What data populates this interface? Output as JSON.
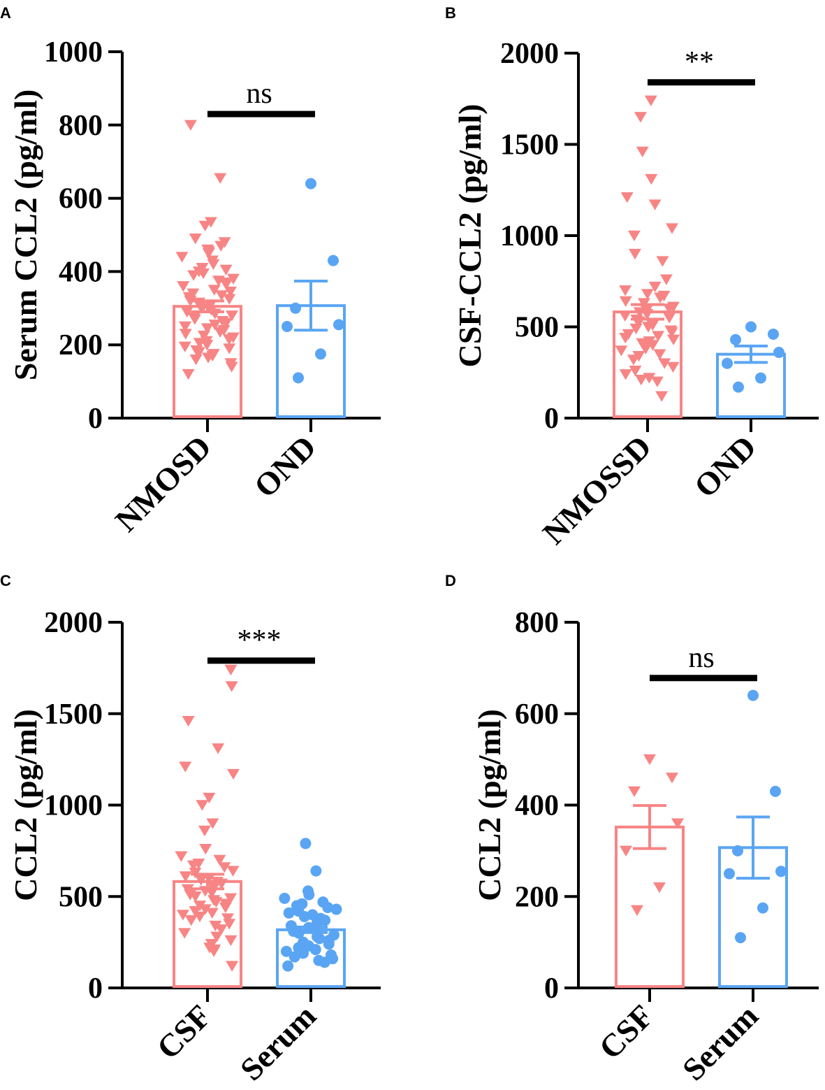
{
  "colors": {
    "group1": "#f78585",
    "group2": "#5aa5f3",
    "axis": "#000000"
  },
  "chart_data": [
    {
      "panel": "A",
      "type": "bar",
      "ylabel": "Serum CCL2 (pg/ml)",
      "ylim": [
        0,
        1000
      ],
      "yticks": [
        0,
        200,
        400,
        600,
        800,
        1000
      ],
      "categories": [
        "NMOSD",
        "OND"
      ],
      "series": [
        {
          "name": "NMOSD",
          "mean": 305,
          "sem": 15,
          "marker": "triangle-down",
          "points": [
            800,
            655,
            535,
            525,
            490,
            480,
            470,
            460,
            455,
            450,
            440,
            430,
            420,
            410,
            405,
            400,
            395,
            390,
            380,
            375,
            370,
            365,
            360,
            350,
            345,
            340,
            335,
            330,
            325,
            320,
            315,
            310,
            305,
            300,
            295,
            290,
            285,
            280,
            275,
            270,
            265,
            260,
            255,
            250,
            245,
            240,
            235,
            230,
            225,
            220,
            215,
            210,
            205,
            200,
            195,
            190,
            185,
            180,
            175,
            170,
            165,
            160,
            150,
            140,
            120
          ]
        },
        {
          "name": "OND",
          "mean": 307,
          "sem": 67,
          "marker": "circle",
          "points": [
            640,
            430,
            300,
            255,
            250,
            175,
            110
          ]
        }
      ],
      "significance": {
        "label": "ns",
        "pair": [
          0,
          1
        ],
        "y": 830
      }
    },
    {
      "panel": "B",
      "type": "bar",
      "ylabel": "CSF-CCL2 (pg/ml)",
      "ylim": [
        0,
        2000
      ],
      "yticks": [
        0,
        500,
        1000,
        1500,
        2000
      ],
      "categories": [
        "NMOSSD",
        "OND"
      ],
      "series": [
        {
          "name": "NMOSSD",
          "mean": 582,
          "sem": 40,
          "marker": "triangle-down",
          "points": [
            1740,
            1650,
            1460,
            1310,
            1210,
            1170,
            1040,
            1000,
            900,
            860,
            760,
            720,
            700,
            680,
            670,
            660,
            640,
            630,
            610,
            600,
            590,
            580,
            570,
            560,
            550,
            540,
            530,
            520,
            510,
            500,
            490,
            480,
            470,
            460,
            450,
            440,
            430,
            420,
            410,
            400,
            390,
            380,
            370,
            350,
            340,
            320,
            300,
            280,
            260,
            240,
            220,
            210,
            200,
            120
          ]
        },
        {
          "name": "OND",
          "mean": 350,
          "sem": 45,
          "marker": "circle",
          "points": [
            500,
            460,
            430,
            360,
            300,
            220,
            170
          ]
        }
      ],
      "significance": {
        "label": "**",
        "pair": [
          0,
          1
        ],
        "y": 1840
      }
    },
    {
      "panel": "C",
      "type": "bar",
      "ylabel": "CCL2 (pg/ml)",
      "ylim": [
        0,
        2000
      ],
      "yticks": [
        0,
        500,
        1000,
        1500,
        2000
      ],
      "categories": [
        "CSF",
        "Serum"
      ],
      "series": [
        {
          "name": "CSF",
          "mean": 582,
          "sem": 40,
          "marker": "triangle-down",
          "points": [
            1740,
            1650,
            1460,
            1310,
            1210,
            1170,
            1040,
            1000,
            900,
            860,
            760,
            720,
            700,
            680,
            670,
            660,
            640,
            630,
            610,
            600,
            590,
            580,
            570,
            560,
            550,
            540,
            530,
            520,
            510,
            500,
            490,
            480,
            470,
            460,
            450,
            440,
            430,
            420,
            410,
            400,
            390,
            380,
            370,
            350,
            340,
            320,
            300,
            280,
            260,
            240,
            220,
            210,
            200,
            120
          ]
        },
        {
          "name": "Serum",
          "mean": 318,
          "sem": 15,
          "marker": "circle",
          "points": [
            790,
            640,
            530,
            510,
            490,
            470,
            460,
            450,
            440,
            430,
            420,
            410,
            400,
            390,
            380,
            370,
            360,
            350,
            340,
            330,
            320,
            310,
            300,
            290,
            280,
            270,
            260,
            250,
            240,
            230,
            220,
            210,
            200,
            190,
            180,
            170,
            160,
            150,
            140,
            120
          ]
        }
      ],
      "significance": {
        "label": "***",
        "pair": [
          0,
          1
        ],
        "y": 1790
      }
    },
    {
      "panel": "D",
      "type": "bar",
      "ylabel": "CCL2 (pg/ml)",
      "ylim": [
        0,
        800
      ],
      "yticks": [
        0,
        200,
        400,
        600,
        800
      ],
      "categories": [
        "CSF",
        "Serum"
      ],
      "series": [
        {
          "name": "CSF",
          "mean": 352,
          "sem": 47,
          "marker": "triangle-down",
          "points": [
            500,
            460,
            430,
            360,
            300,
            220,
            170
          ]
        },
        {
          "name": "Serum",
          "mean": 307,
          "sem": 67,
          "marker": "circle",
          "points": [
            640,
            430,
            300,
            255,
            250,
            175,
            110
          ]
        }
      ],
      "significance": {
        "label": "ns",
        "pair": [
          0,
          1
        ],
        "y": 678
      }
    }
  ]
}
